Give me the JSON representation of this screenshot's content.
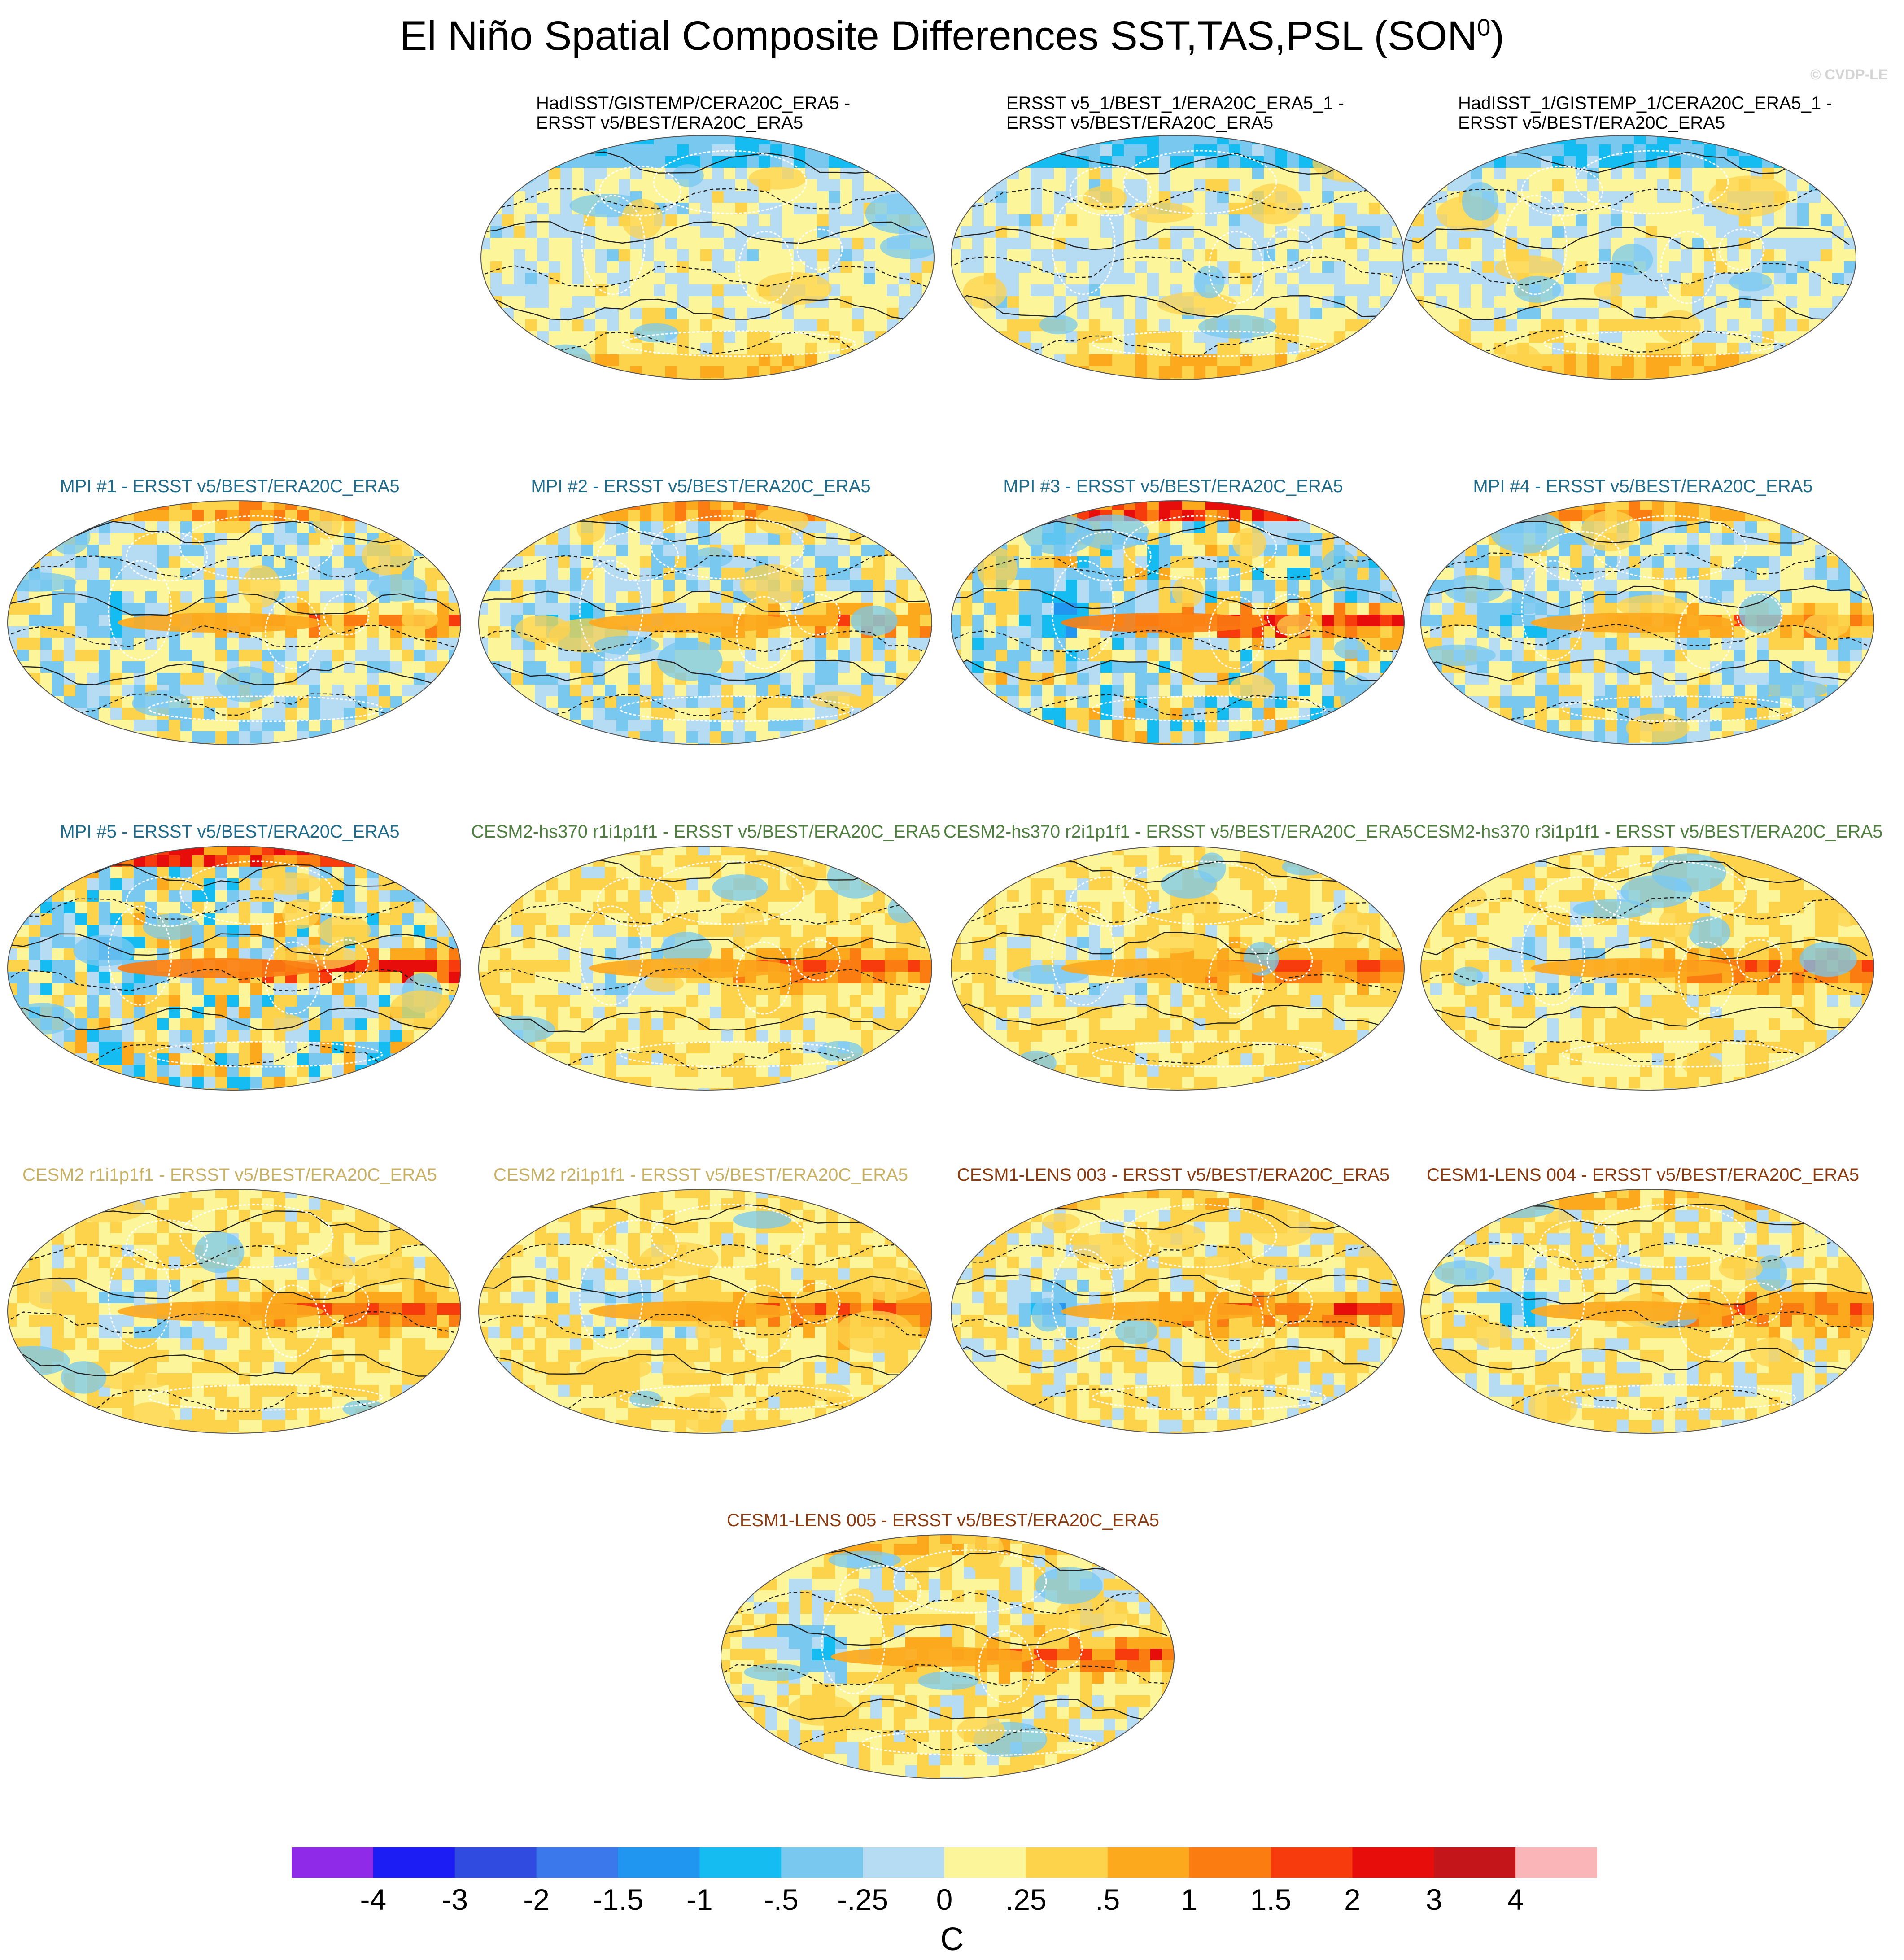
{
  "title": {
    "main": "El Niño Spatial Composite Differences SST,TAS,PSL (SON",
    "sup": "0",
    "close": ")"
  },
  "watermark": "© CVDP-LE",
  "panels": [
    {
      "line1": "HadISST/GISTEMP/CERA20C_ERA5 -",
      "line2": "ERSST v5/BEST/ERA20C_ERA5",
      "color": "#000000",
      "style": "obs"
    },
    {
      "line1": "ERSST v5_1/BEST_1/ERA20C_ERA5_1 -",
      "line2": "ERSST v5/BEST/ERA20C_ERA5",
      "color": "#000000",
      "style": "obs"
    },
    {
      "line1": "HadISST_1/GISTEMP_1/CERA20C_ERA5_1 -",
      "line2": "ERSST v5/BEST/ERA20C_ERA5",
      "color": "#000000",
      "style": "obs"
    },
    {
      "line1": "MPI #1 - ERSST v5/BEST/ERA20C_ERA5",
      "color": "#1f6b8c",
      "style": "mpi"
    },
    {
      "line1": "MPI #2 - ERSST v5/BEST/ERA20C_ERA5",
      "color": "#1f6b8c",
      "style": "mpi"
    },
    {
      "line1": "MPI #3 - ERSST v5/BEST/ERA20C_ERA5",
      "color": "#1f6b8c",
      "style": "mpi-strong"
    },
    {
      "line1": "MPI #4 - ERSST v5/BEST/ERA20C_ERA5",
      "color": "#1f6b8c",
      "style": "mpi"
    },
    {
      "line1": "MPI #5 - ERSST v5/BEST/ERA20C_ERA5",
      "color": "#1f6b8c",
      "style": "mpi-strong"
    },
    {
      "line1": "CESM2-hs370 r1i1p1f1 - ERSST v5/BEST/ERA20C_ERA5",
      "color": "#4f7f3f",
      "style": "cesm"
    },
    {
      "line1": "CESM2-hs370 r2i1p1f1 - ERSST v5/BEST/ERA20C_ERA5",
      "color": "#4f7f3f",
      "style": "cesm"
    },
    {
      "line1": "CESM2-hs370 r3i1p1f1 - ERSST v5/BEST/ERA20C_ERA5",
      "color": "#4f7f3f",
      "style": "cesm"
    },
    {
      "line1": "CESM2 r1i1p1f1 - ERSST v5/BEST/ERA20C_ERA5",
      "color": "#c8b064",
      "style": "cesm"
    },
    {
      "line1": "CESM2 r2i1p1f1 - ERSST v5/BEST/ERA20C_ERA5",
      "color": "#c8b064",
      "style": "cesm"
    },
    {
      "line1": "CESM1-LENS 003 - ERSST v5/BEST/ERA20C_ERA5",
      "color": "#8b3a0f",
      "style": "lens"
    },
    {
      "line1": "CESM1-LENS 004 - ERSST v5/BEST/ERA20C_ERA5",
      "color": "#8b3a0f",
      "style": "lens"
    },
    {
      "line1": "CESM1-LENS 005 - ERSST v5/BEST/ERA20C_ERA5",
      "color": "#8b3a0f",
      "style": "lens"
    }
  ],
  "chart_data": {
    "type": "heatmap",
    "title": "El Niño Spatial Composite Differences SST,TAS,PSL (SON0)",
    "variables": [
      "SST",
      "TAS",
      "PSL"
    ],
    "projection": "Robinson (global maps)",
    "colorbar": {
      "units": "C",
      "levels": [
        "-4",
        "-3",
        "-2",
        "-1.5",
        "-1",
        "-.5",
        "-.25",
        "0",
        ".25",
        ".5",
        "1",
        "1.5",
        "2",
        "3",
        "4"
      ],
      "colors": [
        "#8e2ae8",
        "#1c1cf5",
        "#2f4be0",
        "#3b78ec",
        "#2196f0",
        "#15bcf2",
        "#78c8f0",
        "#b5dcf3",
        "#fdf59a",
        "#fed34c",
        "#fca91e",
        "#fb7d12",
        "#f73b0d",
        "#e60d0b",
        "#c4161a",
        "#f9b5b8"
      ]
    },
    "panel_count": 16
  }
}
